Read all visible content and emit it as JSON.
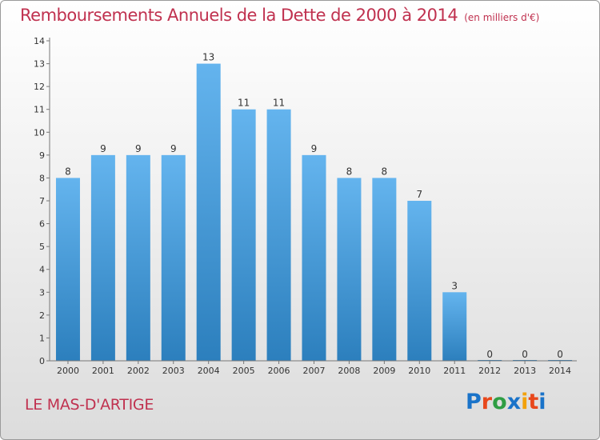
{
  "header": {
    "title": "Remboursements Annuels de la Dette de 2000 à 2014",
    "unit": "(en milliers d'€)"
  },
  "footer": {
    "commune": "LE MAS-D'ARTIGE",
    "logo_text": "Proxiti",
    "logo_colors": [
      "#1a73c9",
      "#e8481c",
      "#2f9e44",
      "#1a73c9",
      "#f2a20c",
      "#e8481c",
      "#1a73c9"
    ]
  },
  "colors": {
    "bar_light": "#64b4ee",
    "bar_dark": "#2c7fbd",
    "title": "#c0314f"
  },
  "chart_data": {
    "type": "bar",
    "title": "Remboursements Annuels de la Dette de 2000 à 2014",
    "xlabel": "",
    "ylabel": "",
    "categories": [
      "2000",
      "2001",
      "2002",
      "2003",
      "2004",
      "2005",
      "2006",
      "2007",
      "2008",
      "2009",
      "2010",
      "2011",
      "2012",
      "2013",
      "2014"
    ],
    "values": [
      8,
      9,
      9,
      9,
      13,
      11,
      11,
      9,
      8,
      8,
      7,
      3,
      0,
      0,
      0
    ],
    "ylim": [
      0,
      14
    ],
    "yticks": [
      0,
      1,
      2,
      3,
      4,
      5,
      6,
      7,
      8,
      9,
      10,
      11,
      12,
      13,
      14
    ],
    "grid": false,
    "data_labels": true
  }
}
